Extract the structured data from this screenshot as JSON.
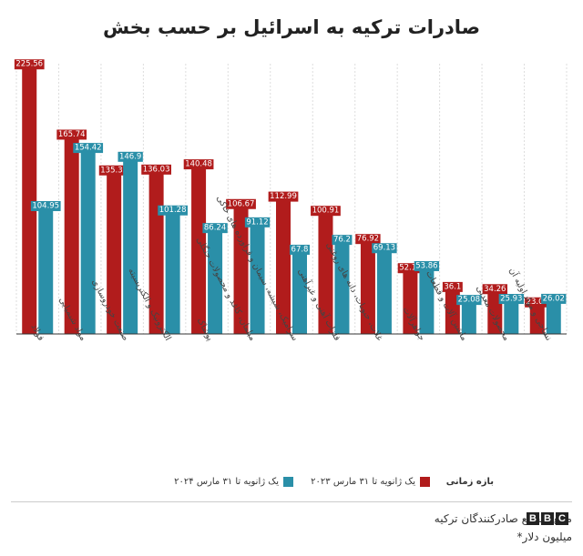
{
  "title": "صادرات ترکیه به اسرائیل بر حسب بخش",
  "legend": {
    "title": "بازه زمانی",
    "items": [
      {
        "label": "یک ژانویه تا ۳۱ مارس ۲۰۲۳",
        "color": "#b11c1c"
      },
      {
        "label": "یک ژانویه تا ۳۱ مارس ۲۰۲۴",
        "color": "#2a8fa8"
      }
    ]
  },
  "footer": {
    "source": "منبع: مجمع صادرکنندگان ترکیه",
    "unit": "میلیون دلار*"
  },
  "logo": [
    "B",
    "B",
    "C"
  ],
  "chart_data": {
    "type": "bar",
    "title": "صادرات ترکیه به اسرائیل بر حسب بخش",
    "categories": [
      "فولاد",
      "مواد شیمیایی",
      "صنعت خودروسازی",
      "الکترونیک و الکتریسیته",
      "پوشاک",
      "مبلمان، کاغذ و محصولات جنگلی",
      "سرامیک، شیشه، سیمان و فراورده های خاکی",
      "فلزات آهنی و غیرآهنی",
      "غلات، حبوبات، دانه های روغنی",
      "جواهرآلات",
      "ماشین آلات و قطعات",
      "محصولات معدنی",
      "نساجی و مواد اولیه آن"
    ],
    "series": [
      {
        "name": "یک ژانویه تا ۳۱ مارس ۲۰۲۳",
        "color": "#b11c1c",
        "values": [
          225.56,
          165.74,
          135.32,
          136.03,
          140.48,
          106.67,
          112.99,
          100.91,
          76.92,
          52.11,
          36.1,
          34.26,
          23.04
        ]
      },
      {
        "name": "یک ژانویه تا ۳۱ مارس ۲۰۲۴",
        "color": "#2a8fa8",
        "values": [
          104.95,
          154.42,
          146.9,
          101.28,
          86.24,
          91.12,
          67.8,
          76.2,
          69.13,
          53.86,
          25.08,
          25.93,
          26.02
        ]
      }
    ],
    "ylim": [
      0,
      230
    ],
    "grid": true
  }
}
